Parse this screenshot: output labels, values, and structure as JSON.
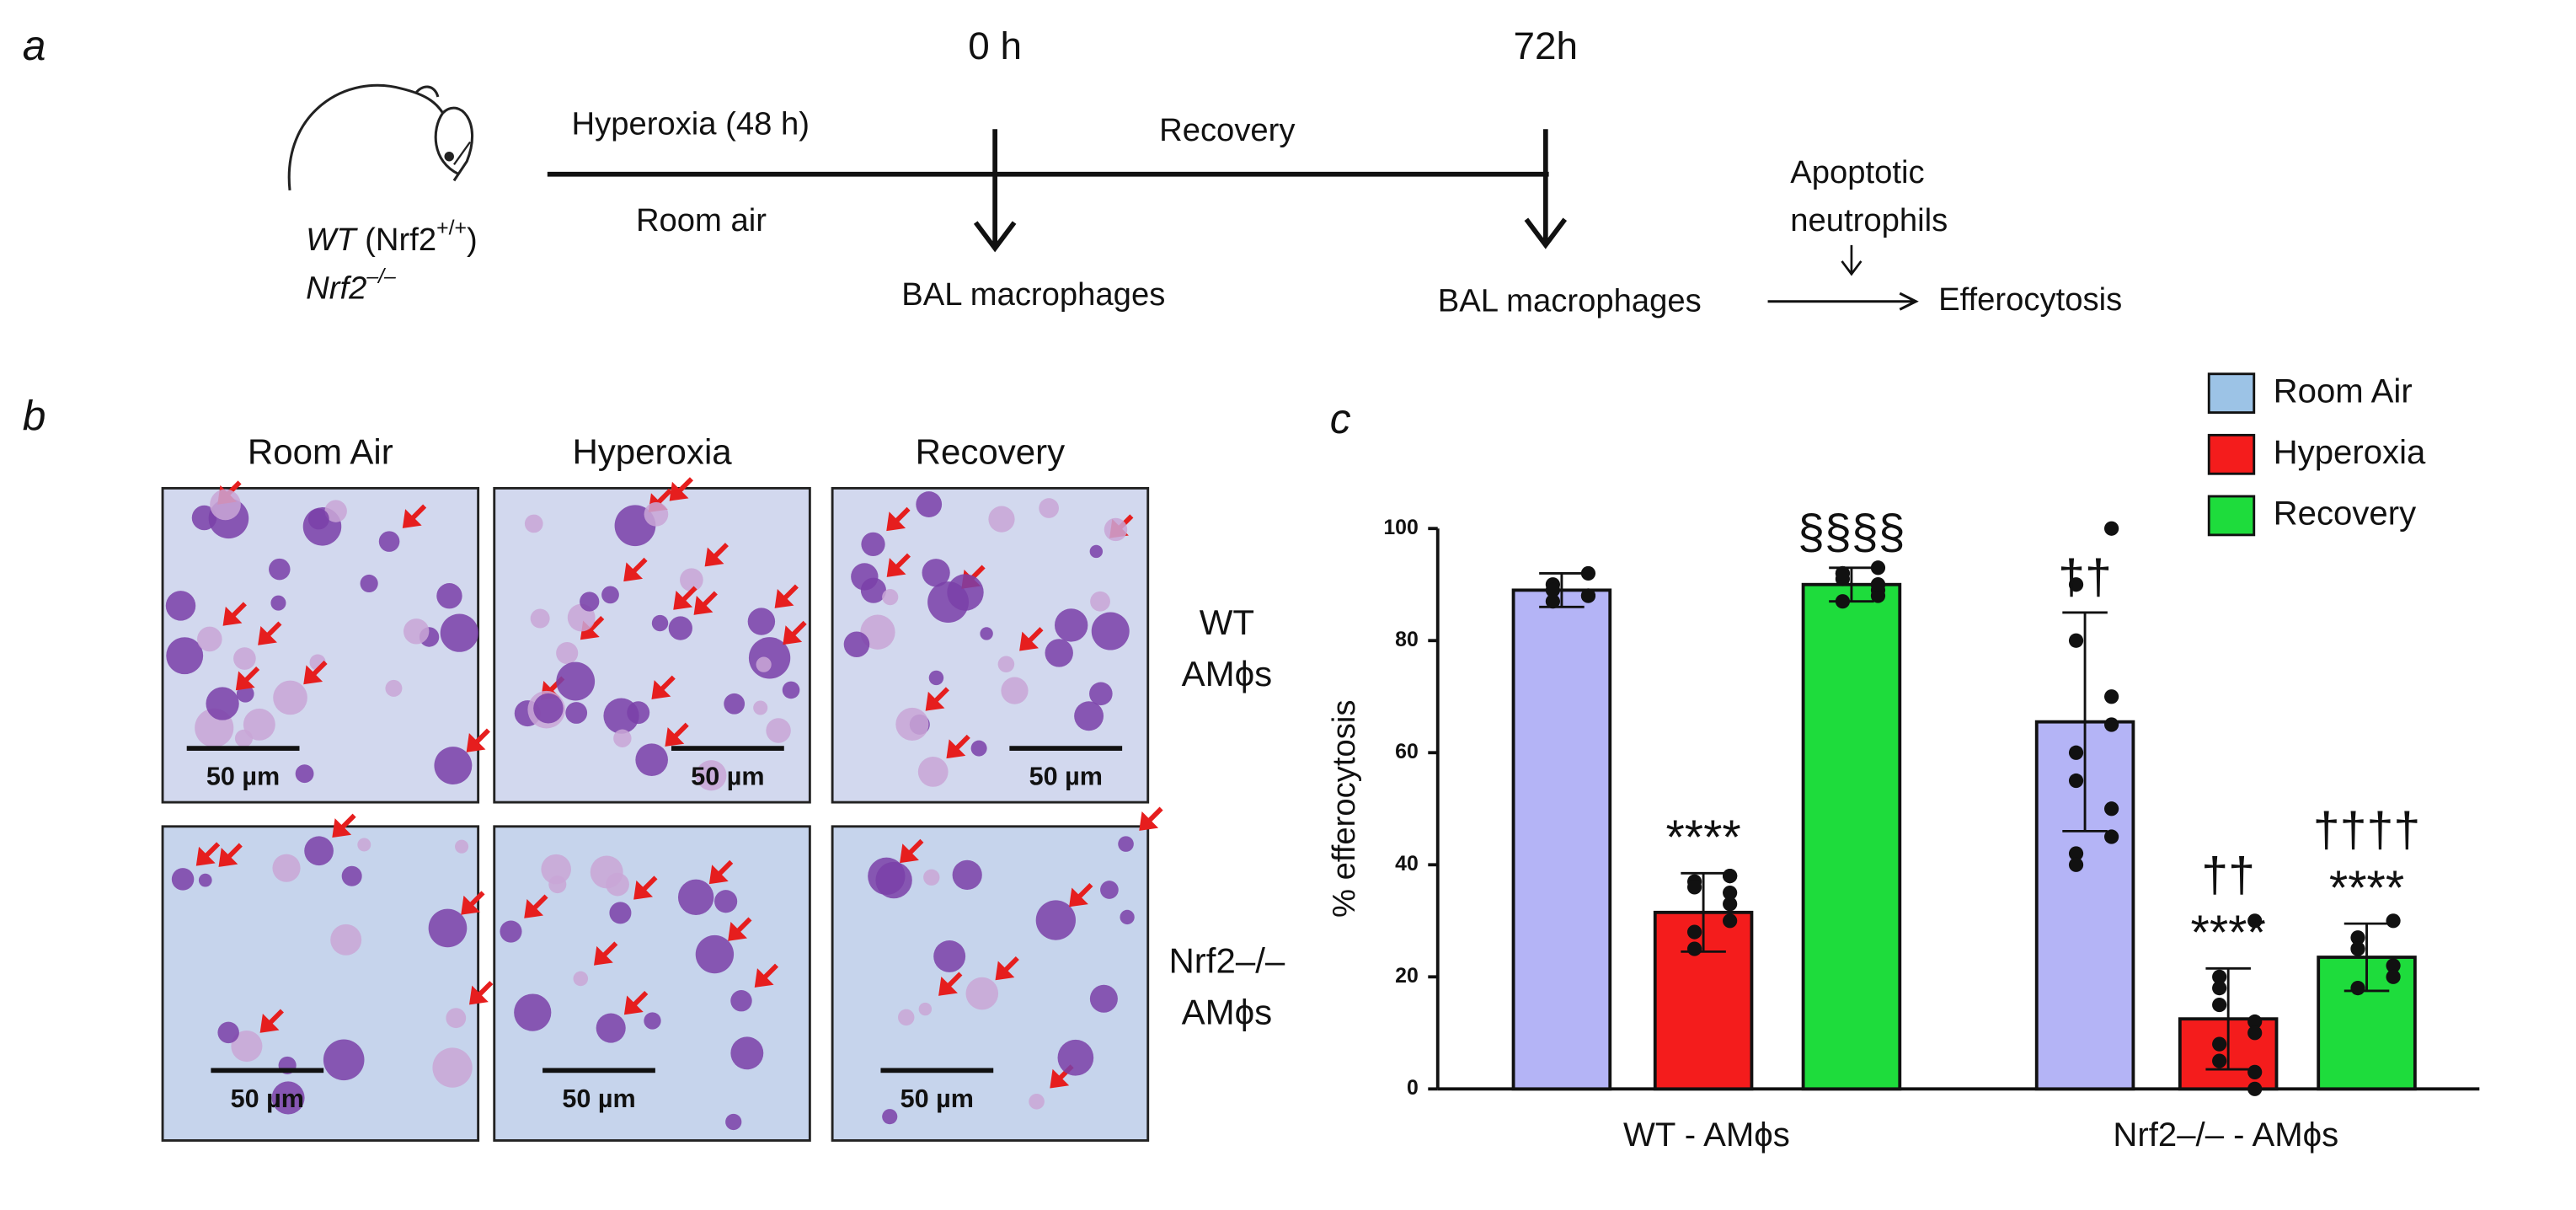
{
  "panel_a": {
    "label": "a",
    "wt_label": {
      "name": "WT",
      "gene": " (Nrf2",
      "sup": "+/+",
      "close": ")"
    },
    "ko_label": {
      "name": "Nrf2",
      "sup": "–/–"
    },
    "exposure_top": "Hyperoxia (48 h)",
    "exposure_bottom": "Room air",
    "time_start": "0 h",
    "phase": "Recovery",
    "time_end": "72h",
    "collect_1": "BAL macrophages",
    "collect_2": "BAL macrophages",
    "added": [
      "Apoptotic",
      "neutrophils"
    ],
    "assay": "Efferocytosis"
  },
  "panel_b": {
    "label": "b",
    "columns": [
      "Room Air",
      "Hyperoxia",
      "Recovery"
    ],
    "rows": [
      [
        "WT",
        "AMϕs"
      ],
      [
        "Nrf2–/–",
        "AMϕs"
      ]
    ],
    "scale_bars": [
      [
        "50 µm",
        "50 µm",
        "50 µm"
      ],
      [
        "50 µm",
        "50 µm",
        "50 µm"
      ]
    ]
  },
  "chart_data": {
    "type": "bar",
    "label": "c",
    "ylabel": "% efferocytosis",
    "categories": [
      "WT - AMϕs",
      "Nrf2–/– - AMϕs"
    ],
    "ylim": [
      0,
      100
    ],
    "yticks": [
      0,
      20,
      40,
      60,
      80,
      100
    ],
    "legend": "top-right",
    "series": [
      {
        "name": "Room Air",
        "color": "#b4b4f6",
        "legend_color": "#9cc3e6",
        "values": [
          89,
          65.5
        ],
        "errors": [
          3,
          19.5
        ],
        "points": [
          [
            88,
            90,
            87,
            92,
            88,
            89
          ],
          [
            100,
            90,
            80,
            70,
            65,
            60,
            55,
            50,
            45,
            42,
            40
          ]
        ],
        "annotations": [
          [],
          [
            "††"
          ]
        ]
      },
      {
        "name": "Hyperoxia",
        "color": "#f41c1c",
        "values": [
          31.5,
          12.5
        ],
        "errors": [
          7,
          9
        ],
        "points": [
          [
            38,
            37,
            36,
            33,
            30,
            28,
            25,
            35,
            38
          ],
          [
            30,
            20,
            15,
            12,
            10,
            8,
            5,
            3,
            0,
            18
          ]
        ],
        "annotations": [
          [
            "****"
          ],
          [
            "††",
            "****"
          ]
        ]
      },
      {
        "name": "Recovery",
        "color": "#1edc3c",
        "values": [
          90,
          23.5
        ],
        "errors": [
          3,
          6
        ],
        "points": [
          [
            93,
            92,
            91,
            90,
            88,
            87,
            92,
            89,
            90
          ],
          [
            30,
            27,
            25,
            22,
            20,
            18,
            25
          ]
        ],
        "annotations": [
          [
            "§§§§"
          ],
          [
            "††††",
            "****"
          ]
        ]
      }
    ]
  }
}
